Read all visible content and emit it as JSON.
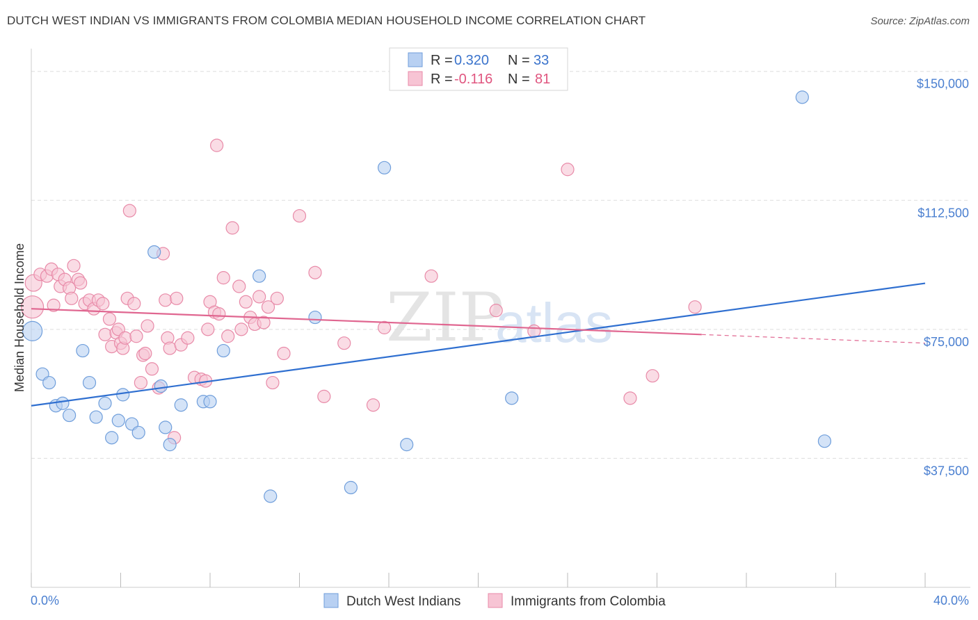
{
  "title": "DUTCH WEST INDIAN VS IMMIGRANTS FROM COLOMBIA MEDIAN HOUSEHOLD INCOME CORRELATION CHART",
  "source": "Source: ZipAtlas.com",
  "watermark": {
    "zip": "ZIP",
    "atlas": "atlas"
  },
  "colors": {
    "blue_fill": "#b8d0f2",
    "blue_stroke": "#6f9edb",
    "blue_line": "#2f6fd0",
    "pink_fill": "#f7c4d4",
    "pink_stroke": "#e88aa8",
    "pink_line": "#e06690",
    "grid": "#dddddd",
    "tick_text": "#4a7fd0"
  },
  "legend": {
    "row1": {
      "r_label": "R =",
      "r_value": "0.320",
      "n_label": "N =",
      "n_value": "33"
    },
    "row2": {
      "r_label": "R =",
      "r_value": "-0.116",
      "n_label": "N =",
      "n_value": "81"
    }
  },
  "chart_data": {
    "type": "scatter",
    "title": "DUTCH WEST INDIAN VS IMMIGRANTS FROM COLOMBIA MEDIAN HOUSEHOLD INCOME CORRELATION CHART",
    "xlabel": "",
    "ylabel": "Median Household Income",
    "xlim": [
      0,
      40
    ],
    "ylim": [
      0,
      155000
    ],
    "x_tick_labels": [
      "0.0%",
      "40.0%"
    ],
    "y_ticks": [
      37500,
      75000,
      112500,
      150000
    ],
    "y_tick_labels": [
      "$37,500",
      "$75,000",
      "$112,500",
      "$150,000"
    ],
    "grid": true,
    "legend_position": "top-center",
    "series": [
      {
        "name": "Dutch West Indians",
        "color": "#b8d0f2",
        "trend": {
          "x": [
            0,
            40
          ],
          "y": [
            52800,
            88400
          ]
        },
        "points": [
          [
            0.05,
            74500,
            14
          ],
          [
            0.5,
            62000,
            9
          ],
          [
            0.8,
            59500,
            9
          ],
          [
            1.1,
            52800,
            9
          ],
          [
            1.4,
            53500,
            9
          ],
          [
            1.7,
            50000,
            9
          ],
          [
            2.3,
            68800,
            9
          ],
          [
            2.6,
            59500,
            9
          ],
          [
            2.9,
            49500,
            9
          ],
          [
            3.3,
            53500,
            9
          ],
          [
            3.6,
            43500,
            9
          ],
          [
            3.9,
            48500,
            9
          ],
          [
            4.1,
            56000,
            9
          ],
          [
            4.5,
            47500,
            9
          ],
          [
            4.8,
            45000,
            9
          ],
          [
            5.5,
            97500,
            9
          ],
          [
            5.8,
            58500,
            9
          ],
          [
            6.0,
            46500,
            9
          ],
          [
            6.2,
            41500,
            9
          ],
          [
            6.7,
            53000,
            9
          ],
          [
            7.7,
            54000,
            9
          ],
          [
            8.0,
            54000,
            9
          ],
          [
            8.6,
            68800,
            9
          ],
          [
            10.2,
            90500,
            9
          ],
          [
            10.7,
            26500,
            9
          ],
          [
            12.7,
            78500,
            9
          ],
          [
            14.3,
            29000,
            9
          ],
          [
            15.8,
            122000,
            9
          ],
          [
            16.8,
            41500,
            9
          ],
          [
            21.5,
            55000,
            9
          ],
          [
            34.5,
            142500,
            9
          ],
          [
            35.5,
            42500,
            9
          ]
        ]
      },
      {
        "name": "Immigrants from Colombia",
        "color": "#f7c4d4",
        "trend": {
          "x": [
            0,
            30
          ],
          "y": [
            81000,
            73500
          ]
        },
        "trend_dashed": {
          "x": [
            30,
            40
          ],
          "y": [
            73500,
            71000
          ]
        },
        "points": [
          [
            0.05,
            81500,
            16
          ],
          [
            0.1,
            88500,
            12
          ],
          [
            0.4,
            91000,
            9
          ],
          [
            0.7,
            90500,
            9
          ],
          [
            0.9,
            92500,
            9
          ],
          [
            1.0,
            82000,
            9
          ],
          [
            1.2,
            91000,
            9
          ],
          [
            1.3,
            87500,
            9
          ],
          [
            1.5,
            89500,
            9
          ],
          [
            1.7,
            87000,
            9
          ],
          [
            1.8,
            84000,
            9
          ],
          [
            1.9,
            93500,
            9
          ],
          [
            2.1,
            89500,
            9
          ],
          [
            2.2,
            88500,
            9
          ],
          [
            2.4,
            82500,
            9
          ],
          [
            2.6,
            83500,
            9
          ],
          [
            2.8,
            81000,
            9
          ],
          [
            3.0,
            83500,
            9
          ],
          [
            3.2,
            82500,
            9
          ],
          [
            3.3,
            73500,
            9
          ],
          [
            3.5,
            78000,
            9
          ],
          [
            3.6,
            70000,
            9
          ],
          [
            3.8,
            74000,
            9
          ],
          [
            3.9,
            75000,
            9
          ],
          [
            4.0,
            71000,
            9
          ],
          [
            4.1,
            69500,
            9
          ],
          [
            4.2,
            72500,
            9
          ],
          [
            4.3,
            84000,
            9
          ],
          [
            4.4,
            109500,
            9
          ],
          [
            4.6,
            82500,
            9
          ],
          [
            4.7,
            73000,
            9
          ],
          [
            4.9,
            59500,
            9
          ],
          [
            5.0,
            67500,
            9
          ],
          [
            5.1,
            68000,
            9
          ],
          [
            5.2,
            76000,
            9
          ],
          [
            5.4,
            63500,
            9
          ],
          [
            5.7,
            58000,
            9
          ],
          [
            5.9,
            97000,
            9
          ],
          [
            6.0,
            83500,
            9
          ],
          [
            6.1,
            72500,
            9
          ],
          [
            6.2,
            69500,
            9
          ],
          [
            6.4,
            43500,
            9
          ],
          [
            6.5,
            84000,
            9
          ],
          [
            6.7,
            70500,
            9
          ],
          [
            7.0,
            72500,
            9
          ],
          [
            7.3,
            61000,
            9
          ],
          [
            7.6,
            60500,
            9
          ],
          [
            7.8,
            60000,
            9
          ],
          [
            7.9,
            75000,
            9
          ],
          [
            8.0,
            83000,
            9
          ],
          [
            8.2,
            80000,
            9
          ],
          [
            8.3,
            128500,
            9
          ],
          [
            8.4,
            79500,
            9
          ],
          [
            8.6,
            90000,
            9
          ],
          [
            8.8,
            73000,
            9
          ],
          [
            9.0,
            104500,
            9
          ],
          [
            9.3,
            87500,
            9
          ],
          [
            9.4,
            75000,
            9
          ],
          [
            9.6,
            83000,
            9
          ],
          [
            9.8,
            78500,
            9
          ],
          [
            10.0,
            76500,
            9
          ],
          [
            10.2,
            84500,
            9
          ],
          [
            10.4,
            77000,
            9
          ],
          [
            10.6,
            81500,
            9
          ],
          [
            10.8,
            59500,
            9
          ],
          [
            11.0,
            84000,
            9
          ],
          [
            11.3,
            68000,
            9
          ],
          [
            12.0,
            108000,
            9
          ],
          [
            12.7,
            91500,
            9
          ],
          [
            13.1,
            55500,
            9
          ],
          [
            14.0,
            71000,
            9
          ],
          [
            15.3,
            53000,
            9
          ],
          [
            15.8,
            75500,
            9
          ],
          [
            17.9,
            90500,
            9
          ],
          [
            20.8,
            80500,
            9
          ],
          [
            22.5,
            74500,
            9
          ],
          [
            24.0,
            121500,
            9
          ],
          [
            26.8,
            55000,
            9
          ],
          [
            27.8,
            61500,
            9
          ],
          [
            29.7,
            81500,
            9
          ]
        ]
      }
    ]
  }
}
